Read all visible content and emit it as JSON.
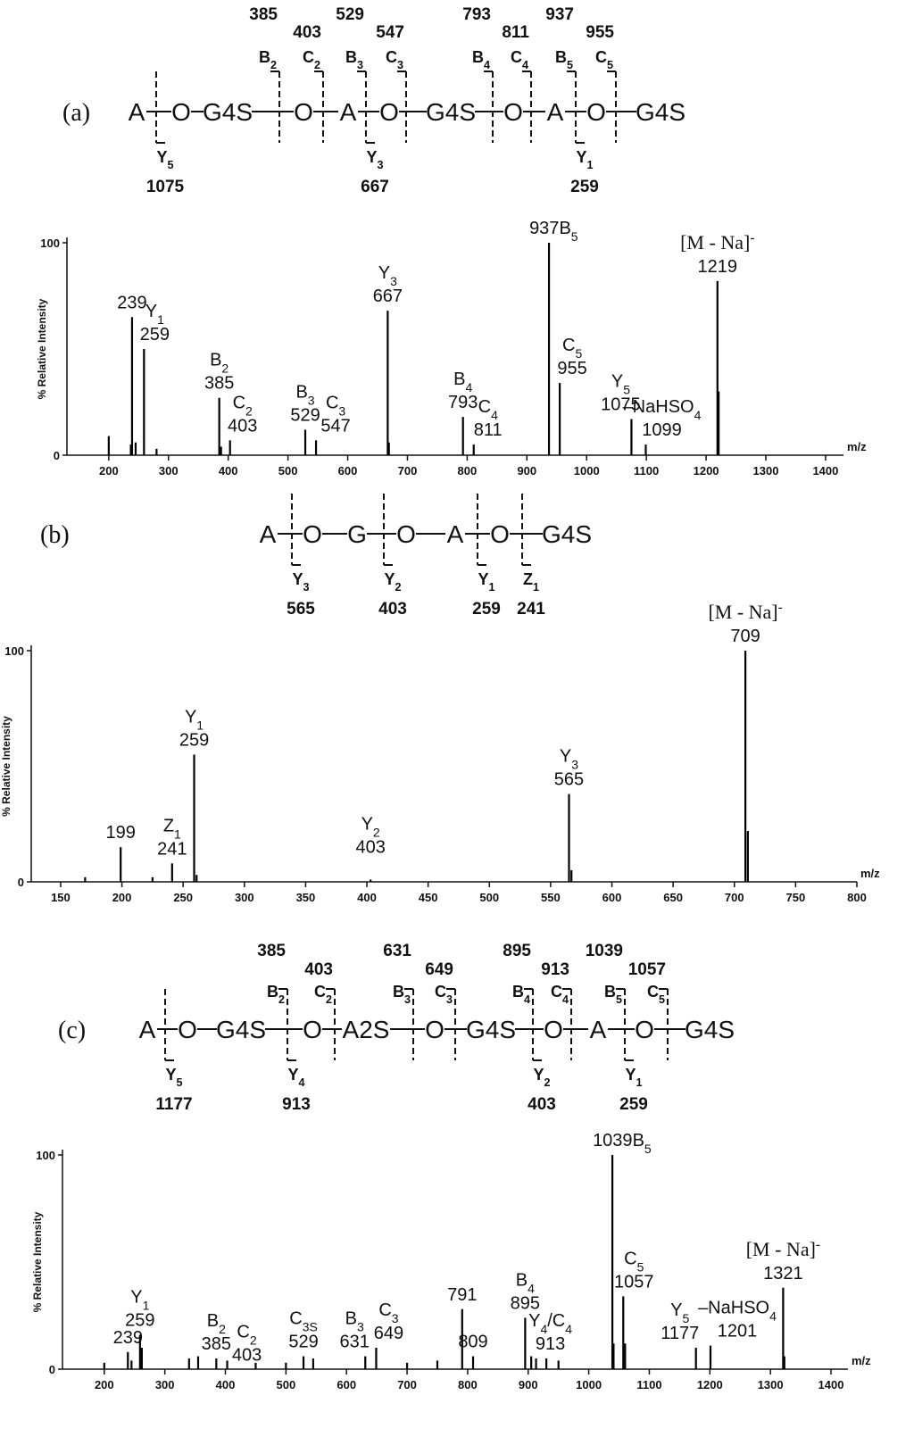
{
  "diagrams": [
    {
      "label": "(a)",
      "residues": [
        "A",
        "O",
        "G4S",
        "O",
        "A",
        "O",
        "G4S",
        "O",
        "A",
        "O",
        "G4S"
      ],
      "top_ions": [
        {
          "ion": [
            "B",
            "2"
          ],
          "mz": 385
        },
        {
          "ion": [
            "C",
            "2"
          ],
          "mz": 403
        },
        {
          "ion": [
            "B",
            "3"
          ],
          "mz": 529
        },
        {
          "ion": [
            "C",
            "3"
          ],
          "mz": 547
        },
        {
          "ion": [
            "B",
            "4"
          ],
          "mz": 793
        },
        {
          "ion": [
            "C",
            "4"
          ],
          "mz": 811
        },
        {
          "ion": [
            "B",
            "5"
          ],
          "mz": 937
        },
        {
          "ion": [
            "C",
            "5"
          ],
          "mz": 955
        }
      ],
      "bottom_ions": [
        {
          "ion": [
            "Y",
            "5"
          ],
          "mz": 1075
        },
        {
          "ion": [
            "Y",
            "3"
          ],
          "mz": 667
        },
        {
          "ion": [
            "Y",
            "1"
          ],
          "mz": 259
        }
      ]
    },
    {
      "label": "(b)",
      "residues": [
        "A",
        "O",
        "G",
        "O",
        "A",
        "O",
        "G4S"
      ],
      "top_ions": [],
      "bottom_ions": [
        {
          "ion": [
            "Y",
            "3"
          ],
          "mz": 565
        },
        {
          "ion": [
            "Y",
            "2"
          ],
          "mz": 403
        },
        {
          "ion": [
            "Y",
            "1"
          ],
          "mz": 259
        },
        {
          "ion": [
            "Z",
            "1"
          ],
          "mz": 241
        }
      ]
    },
    {
      "label": "(c)",
      "residues": [
        "A",
        "O",
        "G4S",
        "O",
        "A2S",
        "O",
        "G4S",
        "O",
        "A",
        "O",
        "G4S"
      ],
      "top_ions": [
        {
          "ion": [
            "B",
            "2"
          ],
          "mz": 385
        },
        {
          "ion": [
            "C",
            "2"
          ],
          "mz": 403
        },
        {
          "ion": [
            "B",
            "3"
          ],
          "mz": 631
        },
        {
          "ion": [
            "C",
            "3"
          ],
          "mz": 649
        },
        {
          "ion": [
            "B",
            "4"
          ],
          "mz": 895
        },
        {
          "ion": [
            "C",
            "4"
          ],
          "mz": 913
        },
        {
          "ion": [
            "B",
            "5"
          ],
          "mz": 1039
        },
        {
          "ion": [
            "C",
            "5"
          ],
          "mz": 1057
        }
      ],
      "bottom_ions": [
        {
          "ion": [
            "Y",
            "5"
          ],
          "mz": 1177
        },
        {
          "ion": [
            "Y",
            "4"
          ],
          "mz": 913
        },
        {
          "ion": [
            "Y",
            "2"
          ],
          "mz": 403
        },
        {
          "ion": [
            "Y",
            "1"
          ],
          "mz": 259
        }
      ]
    }
  ],
  "chart_data": [
    {
      "type": "stick",
      "y_label": "% Relative Intensity",
      "x_label": "m/z",
      "color": "#000000",
      "xlim": [
        130,
        1430
      ],
      "xticks": [
        200,
        300,
        400,
        500,
        600,
        700,
        800,
        900,
        1000,
        1100,
        1200,
        1300,
        1400
      ],
      "ylim": [
        0,
        100
      ],
      "yticks": [
        0,
        100
      ],
      "x": [
        200,
        237,
        239,
        245,
        259,
        280,
        385,
        388,
        403,
        529,
        547,
        667,
        669,
        793,
        811,
        937,
        955,
        1075,
        1099,
        1219,
        1221
      ],
      "values": [
        9,
        5,
        65,
        6,
        50,
        3,
        27,
        4,
        7,
        12,
        7,
        68,
        6,
        18,
        5,
        100,
        34,
        17,
        5,
        82,
        30
      ],
      "labels": [
        null,
        null,
        {},
        null,
        {
          "ion": [
            "Y",
            "1"
          ]
        },
        null,
        {
          "ion": [
            "B",
            "2"
          ]
        },
        null,
        {
          "ion": [
            "C",
            "2"
          ]
        },
        {
          "ion": [
            "B",
            "3"
          ]
        },
        {
          "ion": [
            "C",
            "3"
          ]
        },
        {
          "ion": [
            "Y",
            "3"
          ]
        },
        null,
        {
          "ion": [
            "B",
            "4"
          ]
        },
        {
          "ion": [
            "C",
            "4"
          ]
        },
        {
          "ion": [
            "B",
            "5"
          ]
        },
        {
          "ion": [
            "C",
            "5"
          ]
        },
        {
          "ion": [
            "Y",
            "5"
          ]
        },
        {
          "ion": [
            "–NaHSO",
            "4"
          ]
        },
        {
          "ion": [
            "[M - Na]"
          ],
          "sup": "-"
        },
        null
      ]
    },
    {
      "type": "stick",
      "y_label": "% Relative Intensity",
      "x_label": "m/z",
      "color": "#000000",
      "xlim": [
        126,
        800
      ],
      "xticks": [
        150,
        200,
        250,
        300,
        350,
        400,
        450,
        500,
        550,
        600,
        650,
        700,
        750,
        800
      ],
      "ylim": [
        0,
        100
      ],
      "yticks": [
        0,
        100
      ],
      "x": [
        170,
        199,
        225,
        241,
        259,
        261,
        403,
        565,
        567,
        709,
        711
      ],
      "values": [
        2,
        15,
        2,
        8,
        55,
        3,
        1,
        38,
        5,
        100,
        22
      ],
      "labels": [
        null,
        {},
        null,
        {
          "ion": [
            "Z",
            "1"
          ]
        },
        {
          "ion": [
            "Y",
            "1"
          ]
        },
        null,
        {
          "ion": [
            "Y",
            "2"
          ]
        },
        {
          "ion": [
            "Y",
            "3"
          ]
        },
        null,
        {
          "ion": [
            "[M - Na]"
          ],
          "sup": "-"
        },
        null
      ]
    },
    {
      "type": "stick",
      "y_label": "% Relative Intensity",
      "x_label": "m/z",
      "color": "#000000",
      "xlim": [
        131,
        1428
      ],
      "xticks": [
        200,
        300,
        400,
        500,
        600,
        700,
        800,
        900,
        1000,
        1100,
        1200,
        1300,
        1400
      ],
      "ylim": [
        0,
        100
      ],
      "yticks": [
        0,
        100
      ],
      "x": [
        200,
        239,
        245,
        259,
        262,
        340,
        355,
        385,
        403,
        450,
        500,
        529,
        545,
        631,
        649,
        700,
        750,
        791,
        809,
        895,
        905,
        913,
        930,
        950,
        1039,
        1041,
        1057,
        1060,
        1177,
        1201,
        1321,
        1323
      ],
      "values": [
        3,
        8,
        4,
        16,
        10,
        5,
        6,
        5,
        4,
        3,
        3,
        6,
        5,
        6,
        10,
        3,
        4,
        28,
        6,
        24,
        6,
        5,
        5,
        4,
        100,
        12,
        34,
        12,
        10,
        11,
        38,
        6
      ],
      "labels": [
        null,
        {},
        null,
        {
          "ion": [
            "Y",
            "1"
          ]
        },
        null,
        null,
        null,
        {
          "ion": [
            "B",
            "2"
          ]
        },
        {
          "ion": [
            "C",
            "2"
          ]
        },
        null,
        null,
        {
          "ion": [
            "C",
            "3S"
          ]
        },
        null,
        {
          "ion": [
            "B",
            "3"
          ]
        },
        {
          "ion": [
            "C",
            "3"
          ]
        },
        null,
        null,
        {},
        {},
        {
          "ion": [
            "B",
            "4"
          ]
        },
        null,
        {
          "ion": [
            "Y",
            "4",
            "/C",
            "4"
          ]
        },
        null,
        null,
        {
          "ion": [
            "B",
            "5"
          ]
        },
        null,
        {
          "ion": [
            "C",
            "5"
          ]
        },
        null,
        {
          "ion": [
            "Y",
            "5"
          ]
        },
        {
          "ion": [
            "–NaHSO",
            "4"
          ]
        },
        {
          "ion": [
            "[M - Na]"
          ],
          "sup": "-"
        },
        null
      ]
    }
  ]
}
